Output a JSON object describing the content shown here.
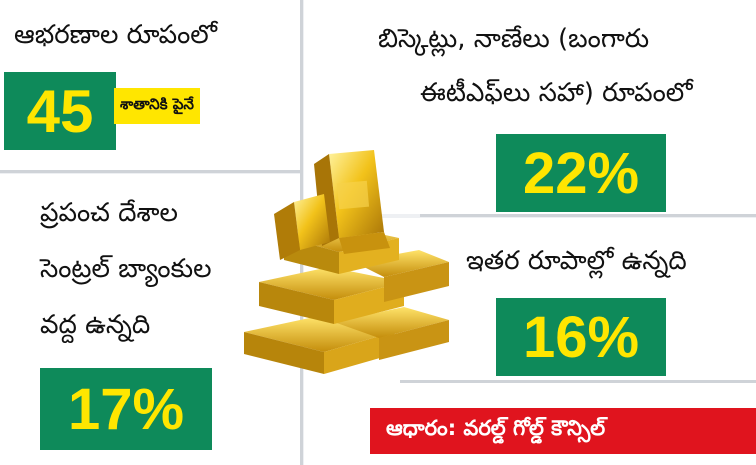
{
  "jewelry": {
    "label": "ఆభరణాల రూపంలో",
    "percent": "45",
    "suffix": "శాతానికి పైనే"
  },
  "bars_coins": {
    "label_line1": "బిస్కెట్లు, నాణేలు (బంగారు",
    "label_line2": "ఈటీఎఫ్‌లు సహా) రూపంలో",
    "percent": "22%"
  },
  "central_banks": {
    "label_line1": "ప్రపంచ దేశాల",
    "label_line2": "సెంట్రల్ బ్యాంకుల",
    "label_line3": "వద్ద ఉన్నది",
    "percent": "17%"
  },
  "other": {
    "label": "ఇతర రూపాల్లో ఉన్నది",
    "percent": "16%"
  },
  "source": {
    "text": "ఆధారం: వరల్డ్ గోల్డ్ కౌన్సిల్"
  },
  "colors": {
    "box_green": "#0e8a5a",
    "number_yellow": "#ffe600",
    "source_red": "#e0141e"
  }
}
